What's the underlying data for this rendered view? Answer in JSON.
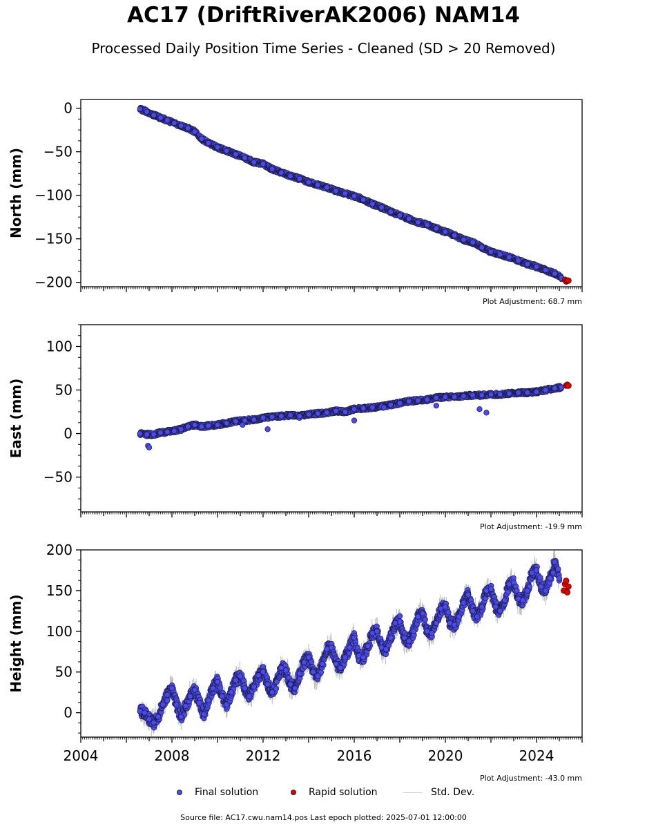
{
  "header": {
    "title": "AC17 (DriftRiverAK2006) NAM14",
    "subtitle": "Processed Daily Position Time Series - Cleaned (SD > 20 Removed)"
  },
  "legend": {
    "final": "Final solution",
    "rapid": "Rapid solution",
    "std": "Std. Dev."
  },
  "footer": {
    "source": "Source file: AC17.cwu.nam14.pos  Last epoch plotted: 2025-07-01 12:00:00"
  },
  "colors": {
    "final": "#4a4af0",
    "rapid": "#e00000",
    "edge": "#1a1a3a",
    "std": "#bbbbbb"
  },
  "chart_data": [
    {
      "type": "scatter",
      "ylabel": "North (mm)",
      "xlim": [
        2004,
        2026
      ],
      "ylim": [
        -205,
        10
      ],
      "yticks": [
        0,
        -50,
        -100,
        -150,
        -200
      ],
      "ytick_labels": [
        "0",
        "−50",
        "−100",
        "−150",
        "−200"
      ],
      "annotation": "Plot Adjustment: 68.7 mm",
      "series": [
        {
          "x": [
            2006.6,
            2006.9,
            2007.2,
            2007.5,
            2007.8,
            2008.1,
            2008.4,
            2008.7,
            2009.0,
            2009.3,
            2009.6,
            2010.0,
            2010.4,
            2010.8,
            2011.2,
            2011.6,
            2012.0,
            2012.4,
            2012.8,
            2013.2,
            2013.6,
            2014.0,
            2014.4,
            2014.8,
            2015.2,
            2015.6,
            2016.0,
            2016.4,
            2016.8,
            2017.2,
            2017.6,
            2018.0,
            2018.4,
            2018.8,
            2019.2,
            2019.6,
            2020.0,
            2020.4,
            2020.8,
            2021.2,
            2021.6,
            2022.0,
            2022.4,
            2022.8,
            2023.2,
            2023.6,
            2024.0,
            2024.4,
            2024.8,
            2025.1
          ],
          "y": [
            -1,
            -4,
            -8,
            -11,
            -14,
            -17,
            -20,
            -23,
            -27,
            -35,
            -40,
            -45,
            -49,
            -53,
            -57,
            -62,
            -64,
            -70,
            -74,
            -78,
            -81,
            -85,
            -88,
            -91,
            -95,
            -98,
            -101,
            -105,
            -110,
            -114,
            -119,
            -123,
            -127,
            -131,
            -134,
            -138,
            -142,
            -146,
            -151,
            -154,
            -160,
            -165,
            -168,
            -171,
            -175,
            -179,
            -182,
            -186,
            -190,
            -195
          ]
        },
        {
          "x": [
            2025.25,
            2025.3,
            2025.35,
            2025.4
          ],
          "y": [
            -197,
            -199,
            -198,
            -198
          ]
        }
      ]
    },
    {
      "type": "scatter",
      "ylabel": "East (mm)",
      "xlim": [
        2004,
        2026
      ],
      "ylim": [
        -90,
        125
      ],
      "yticks": [
        100,
        50,
        0,
        -50
      ],
      "ytick_labels": [
        "100",
        "50",
        "0",
        "−50"
      ],
      "annotation": "Plot Adjustment: -19.9 mm",
      "series": [
        {
          "x": [
            2006.6,
            2006.9,
            2007.2,
            2007.5,
            2007.8,
            2008.1,
            2008.4,
            2008.7,
            2009.0,
            2009.3,
            2009.6,
            2010.0,
            2010.4,
            2010.8,
            2011.2,
            2011.6,
            2012.0,
            2012.4,
            2012.8,
            2013.2,
            2013.6,
            2014.0,
            2014.4,
            2014.8,
            2015.2,
            2015.6,
            2016.0,
            2016.4,
            2016.8,
            2017.2,
            2017.6,
            2018.0,
            2018.4,
            2018.8,
            2019.2,
            2019.6,
            2020.0,
            2020.4,
            2020.8,
            2021.2,
            2021.6,
            2022.0,
            2022.4,
            2022.8,
            2023.2,
            2023.6,
            2024.0,
            2024.4,
            2024.8,
            2025.1
          ],
          "y": [
            0,
            -1,
            -1,
            1,
            2,
            3,
            5,
            8,
            10,
            8,
            9,
            10,
            12,
            14,
            15,
            16,
            18,
            19,
            20,
            21,
            20,
            22,
            23,
            24,
            26,
            25,
            28,
            29,
            30,
            31,
            33,
            35,
            37,
            38,
            39,
            41,
            42,
            42,
            43,
            44,
            44,
            45,
            45,
            46,
            47,
            47,
            48,
            50,
            52,
            53
          ]
        },
        {
          "x": [
            2006.95,
            2007.0,
            2011.1,
            2012.2,
            2016.0,
            2017.3,
            2019.6,
            2021.5,
            2021.8
          ],
          "y": [
            -14,
            -16,
            10,
            5,
            15,
            30,
            32,
            28,
            24
          ]
        },
        {
          "x": [
            2025.3,
            2025.35,
            2025.4
          ],
          "y": [
            55,
            56,
            55
          ]
        }
      ]
    },
    {
      "type": "scatter",
      "ylabel": "Height (mm)",
      "xlabel": "",
      "xlim": [
        2004,
        2026
      ],
      "ylim": [
        -30,
        200
      ],
      "yticks": [
        200,
        150,
        100,
        50,
        0
      ],
      "ytick_labels": [
        "200",
        "150",
        "100",
        "50",
        "0"
      ],
      "xticks": [
        2004,
        2008,
        2012,
        2016,
        2020,
        2024
      ],
      "xtick_labels": [
        "2004",
        "2008",
        "2012",
        "2016",
        "2020",
        "2024"
      ],
      "annotation": "Plot Adjustment: -43.0 mm",
      "series": [
        {
          "x": [
            2006.6,
            2006.8,
            2007.0,
            2007.2,
            2007.4,
            2007.6,
            2007.8,
            2008.0,
            2008.2,
            2008.4,
            2008.6,
            2008.8,
            2009.0,
            2009.2,
            2009.4,
            2009.6,
            2009.8,
            2010.0,
            2010.2,
            2010.4,
            2010.6,
            2010.8,
            2011.0,
            2011.2,
            2011.4,
            2011.6,
            2011.8,
            2012.0,
            2012.2,
            2012.4,
            2012.6,
            2012.8,
            2013.0,
            2013.2,
            2013.4,
            2013.6,
            2013.8,
            2014.0,
            2014.2,
            2014.4,
            2014.6,
            2014.8,
            2015.0,
            2015.2,
            2015.4,
            2015.6,
            2015.8,
            2016.0,
            2016.2,
            2016.4,
            2016.6,
            2016.8,
            2017.0,
            2017.2,
            2017.4,
            2017.6,
            2017.8,
            2018.0,
            2018.2,
            2018.4,
            2018.6,
            2018.8,
            2019.0,
            2019.2,
            2019.4,
            2019.6,
            2019.8,
            2020.0,
            2020.2,
            2020.4,
            2020.6,
            2020.8,
            2021.0,
            2021.2,
            2021.4,
            2021.6,
            2021.8,
            2022.0,
            2022.2,
            2022.4,
            2022.6,
            2022.8,
            2023.0,
            2023.2,
            2023.4,
            2023.6,
            2023.8,
            2024.0,
            2024.2,
            2024.4,
            2024.6,
            2024.8,
            2025.0
          ],
          "y": [
            2,
            0,
            -8,
            -12,
            -5,
            10,
            22,
            30,
            10,
            -5,
            8,
            20,
            28,
            12,
            -2,
            15,
            30,
            38,
            20,
            10,
            25,
            40,
            45,
            30,
            20,
            32,
            46,
            50,
            35,
            25,
            38,
            55,
            52,
            35,
            30,
            48,
            62,
            68,
            50,
            45,
            60,
            78,
            80,
            60,
            55,
            68,
            80,
            92,
            70,
            68,
            82,
            98,
            100,
            80,
            78,
            92,
            110,
            112,
            92,
            88,
            100,
            118,
            122,
            100,
            98,
            110,
            128,
            130,
            110,
            108,
            118,
            135,
            145,
            125,
            118,
            130,
            150,
            152,
            130,
            125,
            138,
            158,
            160,
            140,
            138,
            150,
            172,
            175,
            155,
            150,
            165,
            185,
            165
          ]
        },
        {
          "x": [
            2025.2,
            2025.25,
            2025.3,
            2025.35,
            2025.4
          ],
          "y": [
            150,
            158,
            162,
            148,
            155
          ]
        }
      ]
    }
  ]
}
